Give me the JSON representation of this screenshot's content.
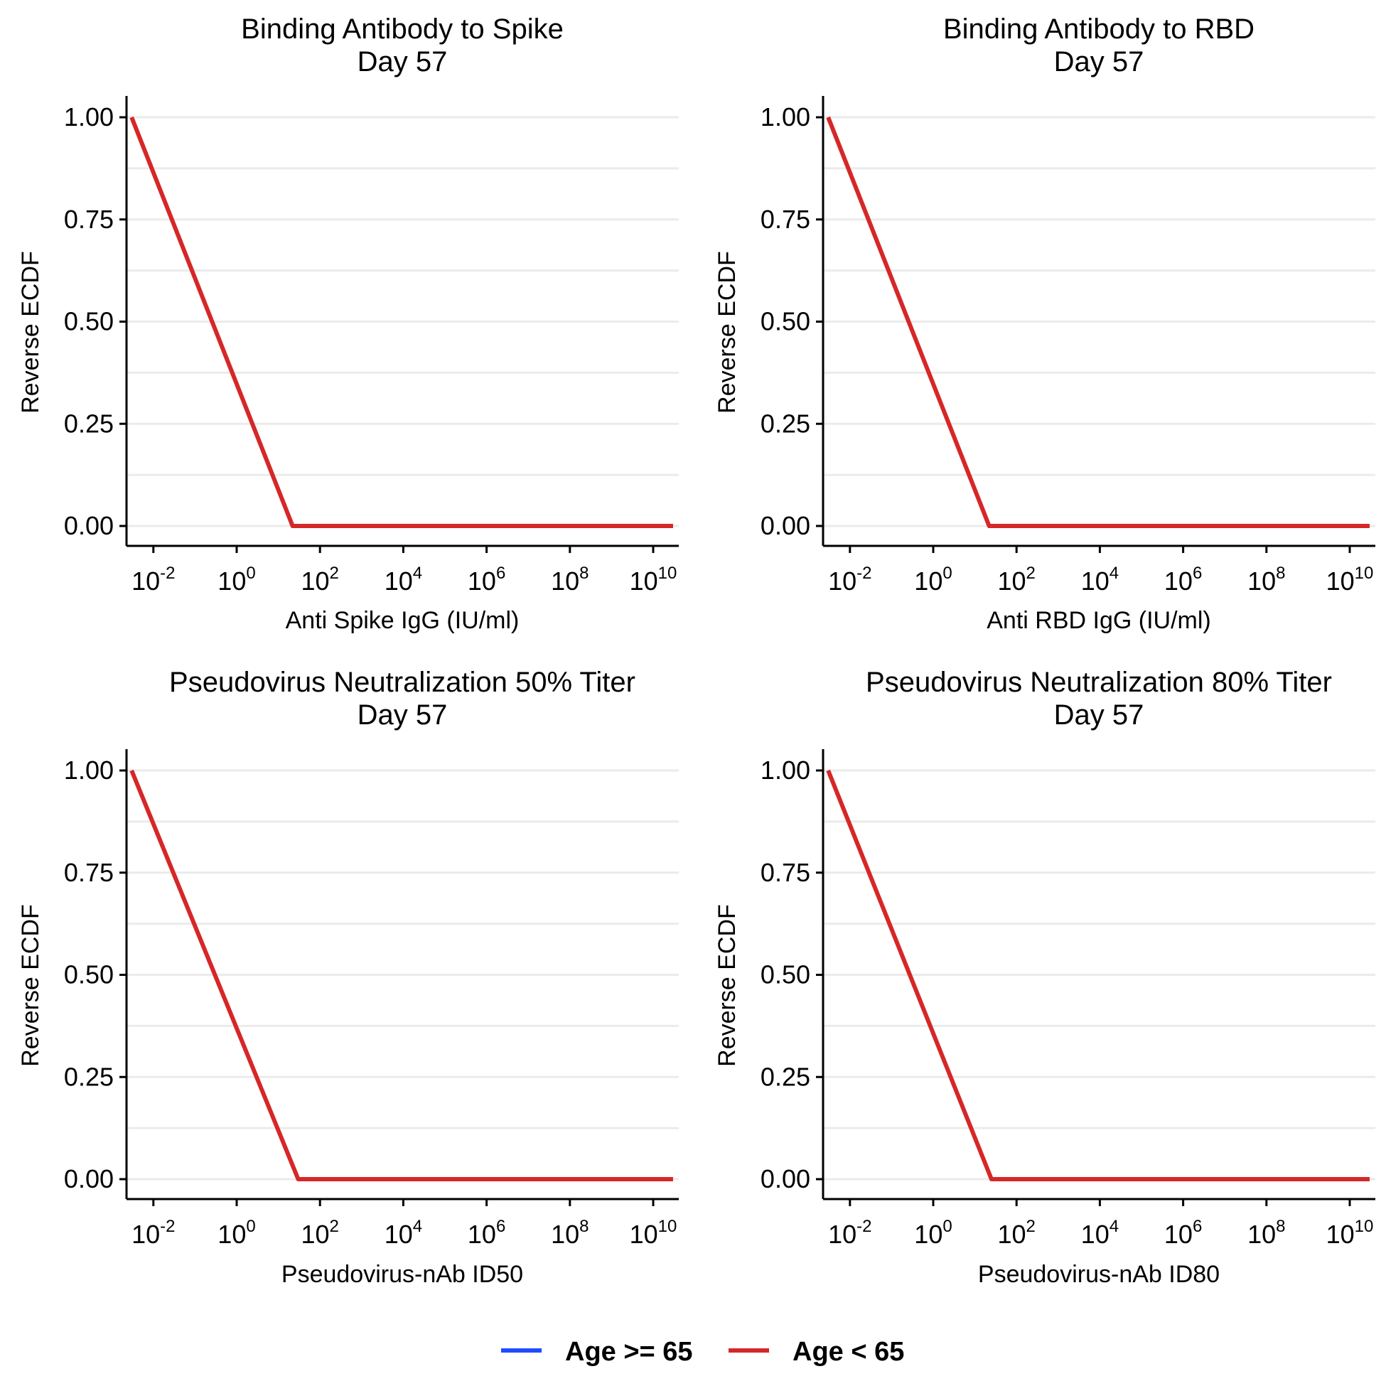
{
  "chart_data": [
    {
      "type": "line",
      "title": "Binding Antibody to Spike",
      "subtitle": "Day 57",
      "xlabel": "Anti Spike IgG (IU/ml)",
      "ylabel": "Reverse ECDF",
      "x_scale": "log10",
      "xlim": [
        0.001,
        30000000000
      ],
      "ylim": [
        0,
        1
      ],
      "x_ticks": [
        0.01,
        1,
        100,
        10000,
        1000000,
        100000000,
        10000000000
      ],
      "x_tick_labels": [
        {
          "base": "10",
          "exp": "-2"
        },
        {
          "base": "10",
          "exp": "0"
        },
        {
          "base": "10",
          "exp": "2"
        },
        {
          "base": "10",
          "exp": "4"
        },
        {
          "base": "10",
          "exp": "6"
        },
        {
          "base": "10",
          "exp": "8"
        },
        {
          "base": "10",
          "exp": "10"
        }
      ],
      "y_ticks": [
        0,
        0.25,
        0.5,
        0.75,
        1
      ],
      "y_tick_labels": [
        "0.00",
        "0.25",
        "0.50",
        "0.75",
        "1.00"
      ],
      "grid": "horizontal major and minor",
      "series": [
        {
          "name": "Age < 65",
          "color": "#d62728",
          "x": [
            0.003,
            22,
            30000000000
          ],
          "y": [
            1,
            0,
            0
          ]
        }
      ]
    },
    {
      "type": "line",
      "title": "Binding Antibody to RBD",
      "subtitle": "Day 57",
      "xlabel": "Anti RBD IgG (IU/ml)",
      "ylabel": "Reverse ECDF",
      "x_scale": "log10",
      "xlim": [
        0.001,
        30000000000
      ],
      "ylim": [
        0,
        1
      ],
      "x_ticks": [
        0.01,
        1,
        100,
        10000,
        1000000,
        100000000,
        10000000000
      ],
      "x_tick_labels": [
        {
          "base": "10",
          "exp": "-2"
        },
        {
          "base": "10",
          "exp": "0"
        },
        {
          "base": "10",
          "exp": "2"
        },
        {
          "base": "10",
          "exp": "4"
        },
        {
          "base": "10",
          "exp": "6"
        },
        {
          "base": "10",
          "exp": "8"
        },
        {
          "base": "10",
          "exp": "10"
        }
      ],
      "y_ticks": [
        0,
        0.25,
        0.5,
        0.75,
        1
      ],
      "y_tick_labels": [
        "0.00",
        "0.25",
        "0.50",
        "0.75",
        "1.00"
      ],
      "grid": "horizontal major and minor",
      "series": [
        {
          "name": "Age < 65",
          "color": "#d62728",
          "x": [
            0.003,
            22,
            30000000000
          ],
          "y": [
            1,
            0,
            0
          ]
        }
      ]
    },
    {
      "type": "line",
      "title": "Pseudovirus Neutralization 50% Titer",
      "subtitle": "Day 57",
      "xlabel": "Pseudovirus-nAb ID50",
      "ylabel": "Reverse ECDF",
      "x_scale": "log10",
      "xlim": [
        0.001,
        30000000000
      ],
      "ylim": [
        0,
        1
      ],
      "x_ticks": [
        0.01,
        1,
        100,
        10000,
        1000000,
        100000000,
        10000000000
      ],
      "x_tick_labels": [
        {
          "base": "10",
          "exp": "-2"
        },
        {
          "base": "10",
          "exp": "0"
        },
        {
          "base": "10",
          "exp": "2"
        },
        {
          "base": "10",
          "exp": "4"
        },
        {
          "base": "10",
          "exp": "6"
        },
        {
          "base": "10",
          "exp": "8"
        },
        {
          "base": "10",
          "exp": "10"
        }
      ],
      "y_ticks": [
        0,
        0.25,
        0.5,
        0.75,
        1
      ],
      "y_tick_labels": [
        "0.00",
        "0.25",
        "0.50",
        "0.75",
        "1.00"
      ],
      "grid": "horizontal major and minor",
      "series": [
        {
          "name": "Age < 65",
          "color": "#d62728",
          "x": [
            0.003,
            30,
            30000000000
          ],
          "y": [
            1,
            0,
            0
          ]
        }
      ]
    },
    {
      "type": "line",
      "title": "Pseudovirus Neutralization 80% Titer",
      "subtitle": "Day 57",
      "xlabel": "Pseudovirus-nAb ID80",
      "ylabel": "Reverse ECDF",
      "x_scale": "log10",
      "xlim": [
        0.001,
        30000000000
      ],
      "ylim": [
        0,
        1
      ],
      "x_ticks": [
        0.01,
        1,
        100,
        10000,
        1000000,
        100000000,
        10000000000
      ],
      "x_tick_labels": [
        {
          "base": "10",
          "exp": "-2"
        },
        {
          "base": "10",
          "exp": "0"
        },
        {
          "base": "10",
          "exp": "2"
        },
        {
          "base": "10",
          "exp": "4"
        },
        {
          "base": "10",
          "exp": "6"
        },
        {
          "base": "10",
          "exp": "8"
        },
        {
          "base": "10",
          "exp": "10"
        }
      ],
      "y_ticks": [
        0,
        0.25,
        0.5,
        0.75,
        1
      ],
      "y_tick_labels": [
        "0.00",
        "0.25",
        "0.50",
        "0.75",
        "1.00"
      ],
      "grid": "horizontal major and minor",
      "series": [
        {
          "name": "Age < 65",
          "color": "#d62728",
          "x": [
            0.003,
            25,
            30000000000
          ],
          "y": [
            1,
            0,
            0
          ]
        }
      ]
    }
  ],
  "legend": {
    "placement": "bottom",
    "items": [
      {
        "label": "Age >= 65",
        "color": "#1f4cff"
      },
      {
        "label": "Age < 65",
        "color": "#d62728"
      }
    ]
  }
}
